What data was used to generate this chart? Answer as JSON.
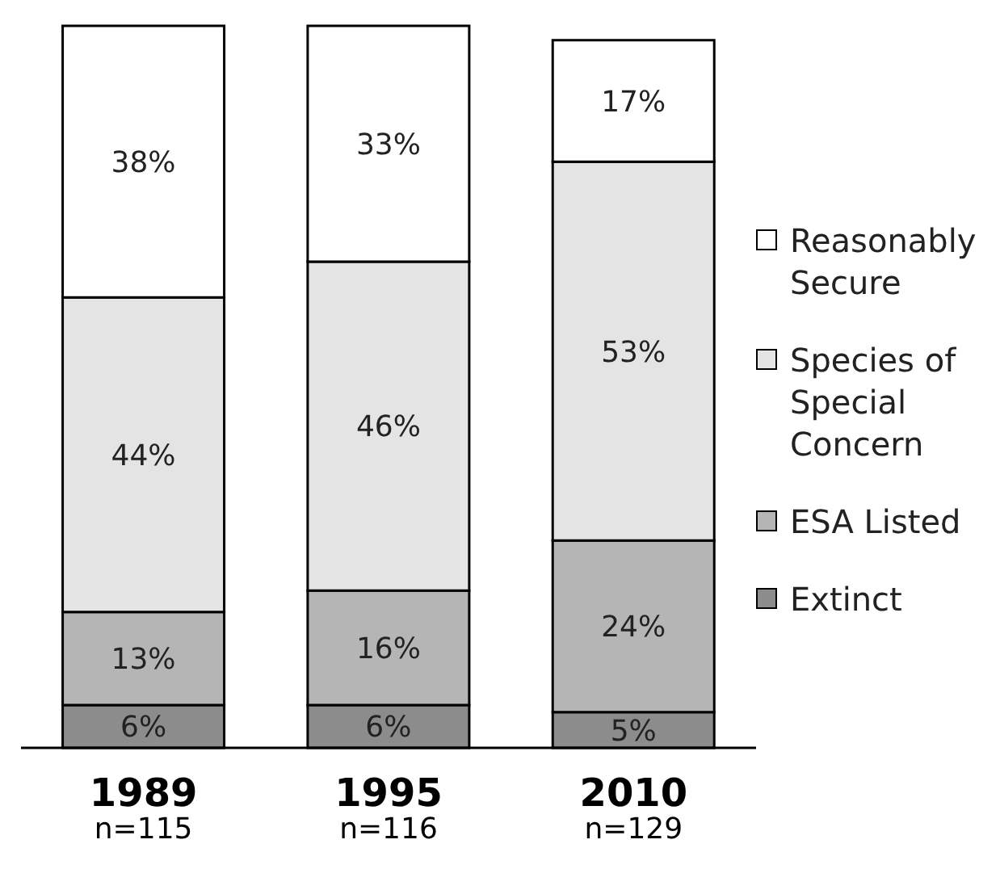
{
  "chart_data": {
    "type": "bar",
    "stacked": true,
    "legend": "right",
    "categories": [
      "1989\nn=115",
      "1995\nn=116",
      "2010\nn=129"
    ],
    "series": [
      {
        "name": "Extinct",
        "color": "#8c8c8c",
        "values": [
          6,
          6,
          5
        ],
        "value_labels": [
          "6%",
          "6%",
          "5%"
        ]
      },
      {
        "name": "ESA Listed",
        "color": "#b5b5b5",
        "values": [
          13,
          16,
          24
        ],
        "value_labels": [
          "13%",
          "16%",
          "24%"
        ]
      },
      {
        "name": "Species of Special Concern",
        "color": "#e4e4e4",
        "values": [
          44,
          46,
          53
        ],
        "value_labels": [
          "44%",
          "46%",
          "53%"
        ]
      },
      {
        "name": "Reasonably Secure",
        "color": "#ffffff",
        "values": [
          38,
          33,
          17
        ],
        "value_labels": [
          "38%",
          "33%",
          "17%"
        ]
      }
    ]
  }
}
